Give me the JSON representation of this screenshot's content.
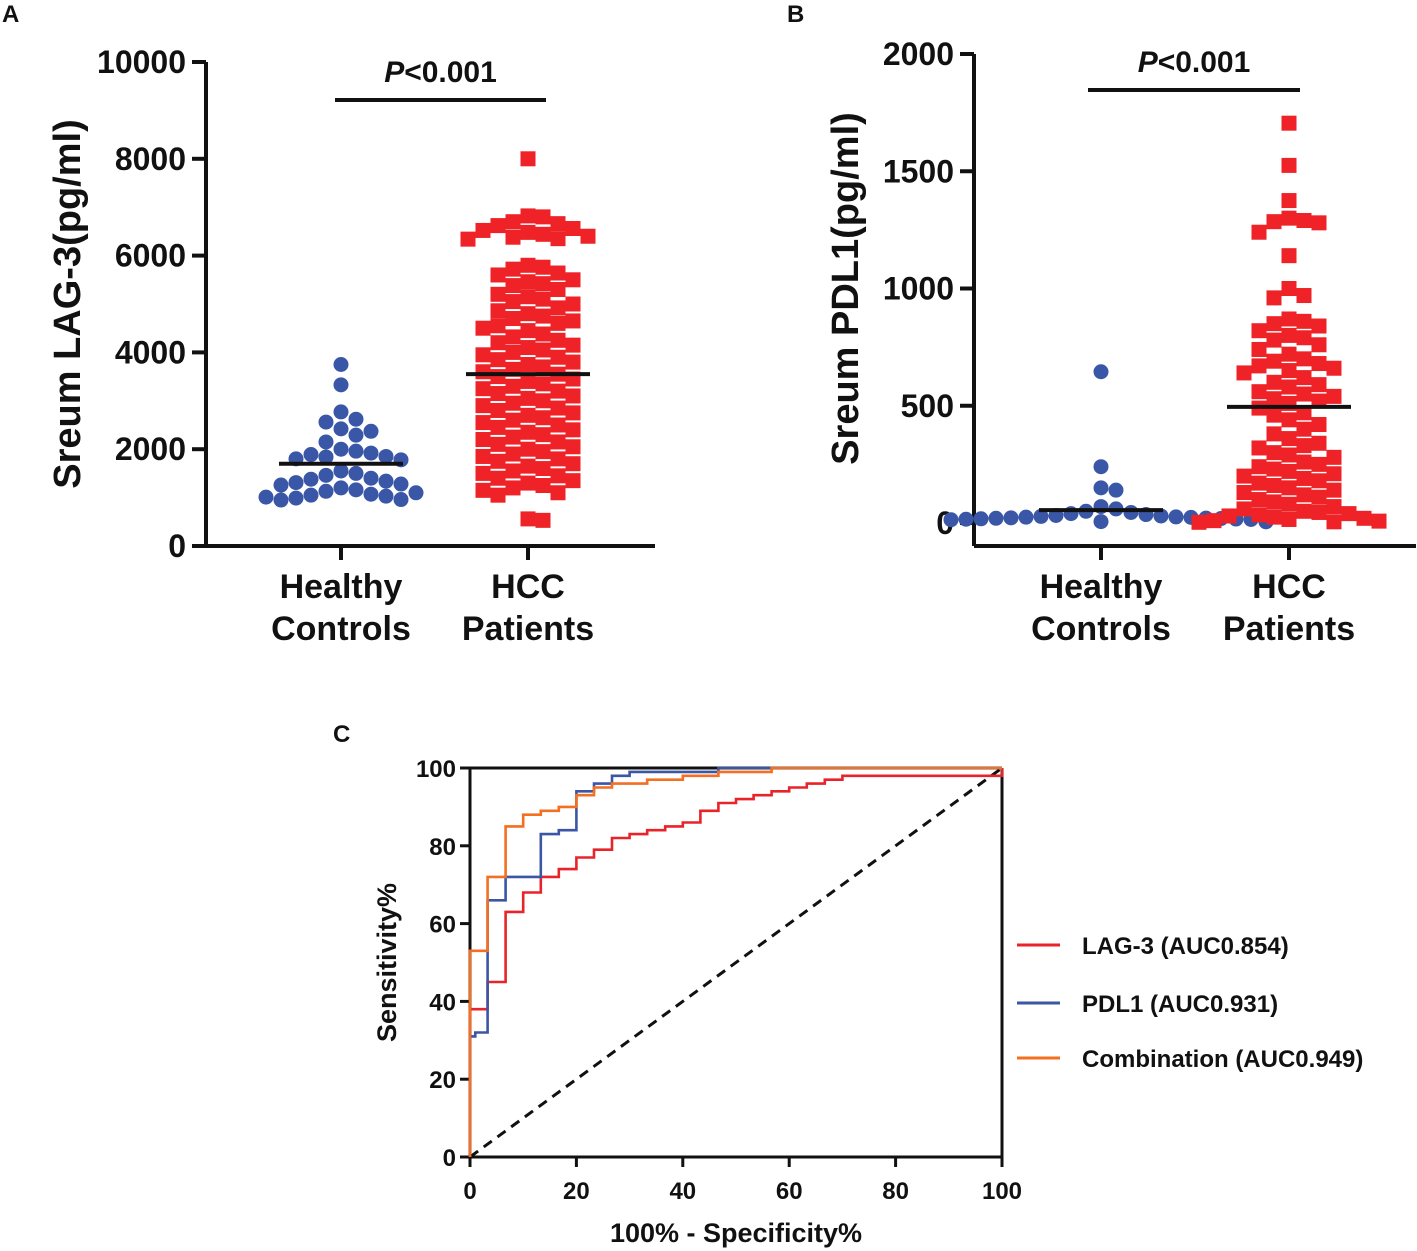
{
  "figure": {
    "panel_labels": [
      "A",
      "B",
      "C"
    ]
  },
  "colors": {
    "healthy": "#3a57a7",
    "hcc": "#ee2227",
    "lag3": "#e8232a",
    "pdl1": "#3a56a5",
    "combination": "#f36f21",
    "axis": "#111111"
  },
  "chart_data": [
    {
      "panel": "A",
      "type": "scatter",
      "ylabel": "Sreum LAG-3(pg/ml)",
      "ylim": [
        0,
        10000
      ],
      "yticks": [
        0,
        2000,
        4000,
        6000,
        8000,
        10000
      ],
      "categories": [
        {
          "line1": "Healthy",
          "line2": "Controls"
        },
        {
          "line1": "HCC",
          "line2": "Patients"
        }
      ],
      "significance": {
        "italic": "P",
        "rest": "<0.001"
      },
      "series": [
        {
          "name": "Healthy Controls",
          "marker": "circle",
          "mean": 1700,
          "values": [
            3750,
            3330,
            2770,
            2620,
            2560,
            2420,
            2370,
            2290,
            2150,
            2000,
            1960,
            1920,
            1890,
            1850,
            1840,
            1800,
            1780,
            1550,
            1500,
            1460,
            1400,
            1380,
            1340,
            1310,
            1280,
            1260,
            1200,
            1160,
            1130,
            1100,
            1070,
            1050,
            1030,
            1010,
            990,
            960,
            950
          ]
        },
        {
          "name": "HCC Patients",
          "marker": "square",
          "mean": 3550,
          "values": [
            8000,
            6820,
            6800,
            6700,
            6660,
            6620,
            6560,
            6520,
            6480,
            6440,
            6400,
            6380,
            6350,
            6340,
            5800,
            5760,
            5720,
            5640,
            5600,
            5500,
            5460,
            5420,
            5380,
            5300,
            5200,
            5150,
            5100,
            5050,
            5000,
            4920,
            4860,
            4800,
            4750,
            4700,
            4650,
            4600,
            4550,
            4500,
            4450,
            4380,
            4320,
            4250,
            4200,
            4150,
            4100,
            4050,
            4000,
            3950,
            3900,
            3850,
            3800,
            3750,
            3700,
            3650,
            3600,
            3550,
            3500,
            3450,
            3400,
            3350,
            3300,
            3250,
            3200,
            3150,
            3100,
            3050,
            3000,
            2950,
            2900,
            2850,
            2800,
            2750,
            2700,
            2650,
            2600,
            2550,
            2500,
            2450,
            2400,
            2350,
            2300,
            2250,
            2200,
            2150,
            2100,
            2050,
            2000,
            1950,
            1900,
            1850,
            1800,
            1750,
            1700,
            1650,
            1600,
            1550,
            1500,
            1450,
            1400,
            1350,
            1300,
            1250,
            1200,
            1150,
            1100,
            1050,
            560,
            530
          ]
        }
      ]
    },
    {
      "panel": "B",
      "type": "scatter",
      "ylabel": "Sreum PDL1(pg/ml)",
      "ylim": [
        0,
        2000
      ],
      "yticks": [
        0,
        500,
        1000,
        1500,
        2000
      ],
      "categories": [
        {
          "line1": "Healthy",
          "line2": "Controls"
        },
        {
          "line1": "HCC",
          "line2": "Patients"
        }
      ],
      "significance": {
        "italic": "P",
        "rest": "<0.001"
      },
      "series": [
        {
          "name": "Healthy Controls",
          "marker": "circle",
          "mean": 55,
          "values": [
            645,
            240,
            150,
            140,
            70,
            60,
            50,
            45,
            40,
            36,
            32,
            30,
            28,
            26,
            25,
            24,
            22,
            21,
            20,
            19,
            18,
            17,
            16,
            15,
            14,
            13,
            12,
            11,
            10,
            9,
            8,
            7,
            6,
            5
          ]
        },
        {
          "name": "HCC Patients",
          "marker": "square",
          "mean": 495,
          "values": [
            1705,
            1525,
            1375,
            1300,
            1290,
            1285,
            1280,
            1240,
            1140,
            1000,
            970,
            960,
            870,
            860,
            850,
            840,
            820,
            800,
            790,
            780,
            760,
            740,
            720,
            700,
            690,
            680,
            670,
            660,
            650,
            640,
            620,
            600,
            590,
            580,
            560,
            550,
            540,
            530,
            520,
            510,
            490,
            470,
            460,
            440,
            420,
            400,
            380,
            360,
            340,
            330,
            320,
            300,
            290,
            280,
            260,
            250,
            240,
            230,
            220,
            210,
            200,
            190,
            180,
            170,
            160,
            150,
            140,
            130,
            120,
            110,
            100,
            90,
            80,
            70,
            60,
            50,
            45,
            40,
            35,
            30,
            25,
            20,
            15,
            10,
            8,
            5,
            3
          ]
        }
      ]
    },
    {
      "panel": "C",
      "type": "line",
      "title": "",
      "xlabel": "100% - Specificity%",
      "ylabel": "Sensitivity%",
      "xlim": [
        0,
        100
      ],
      "ylim": [
        0,
        100
      ],
      "xticks": [
        0,
        20,
        40,
        60,
        80,
        100
      ],
      "yticks": [
        0,
        20,
        40,
        60,
        80,
        100
      ],
      "legend_position": "right",
      "reference_line": {
        "x": [
          0,
          100
        ],
        "y": [
          0,
          100
        ],
        "style": "dashed"
      },
      "series": [
        {
          "name": "LAG-3 (AUC0.854)",
          "color_key": "lag3",
          "x": [
            0,
            0,
            3.3,
            3.3,
            6.7,
            6.7,
            10,
            10,
            13.3,
            13.3,
            16.7,
            16.7,
            20,
            20,
            23.3,
            23.3,
            26.7,
            26.7,
            30,
            30,
            33.3,
            33.3,
            36.7,
            36.7,
            40,
            40,
            43.3,
            43.3,
            46.7,
            46.7,
            50,
            50,
            53.3,
            53.3,
            56.7,
            56.7,
            60,
            60,
            63.3,
            63.3,
            66.7,
            66.7,
            70,
            70,
            100,
            100
          ],
          "y": [
            0,
            38,
            38,
            45,
            45,
            63,
            63,
            68,
            68,
            72,
            72,
            74,
            74,
            77,
            77,
            79,
            79,
            82,
            82,
            83,
            83,
            84,
            84,
            85,
            85,
            86,
            86,
            89,
            89,
            91,
            91,
            92,
            92,
            93,
            93,
            94,
            94,
            95,
            95,
            96,
            96,
            97,
            97,
            98,
            98,
            100
          ]
        },
        {
          "name": "PDL1 (AUC0.931)",
          "color_key": "pdl1",
          "x": [
            0,
            0,
            1,
            1,
            3.3,
            3.3,
            6.7,
            6.7,
            10,
            10,
            13.3,
            13.3,
            16.7,
            16.7,
            20,
            20,
            23.3,
            23.3,
            26.7,
            26.7,
            30,
            30,
            46.7,
            46.7,
            100
          ],
          "y": [
            0,
            31,
            31,
            32,
            32,
            66,
            66,
            72,
            72,
            72,
            72,
            83,
            83,
            84,
            84,
            94,
            94,
            96,
            96,
            98,
            98,
            99,
            99,
            100,
            100
          ]
        },
        {
          "name": "Combination (AUC0.949)",
          "color_key": "combination",
          "x": [
            0,
            0,
            3.3,
            3.3,
            6.7,
            6.7,
            10,
            10,
            13.3,
            13.3,
            16.7,
            16.7,
            20,
            20,
            23.3,
            23.3,
            26.7,
            26.7,
            33.3,
            33.3,
            40,
            40,
            46.7,
            46.7,
            56.7,
            56.7,
            100
          ],
          "y": [
            0,
            53,
            53,
            72,
            72,
            85,
            85,
            88,
            88,
            89,
            89,
            90,
            90,
            93,
            93,
            95,
            95,
            96,
            96,
            97,
            97,
            98,
            98,
            99,
            99,
            100,
            100
          ]
        }
      ]
    }
  ]
}
